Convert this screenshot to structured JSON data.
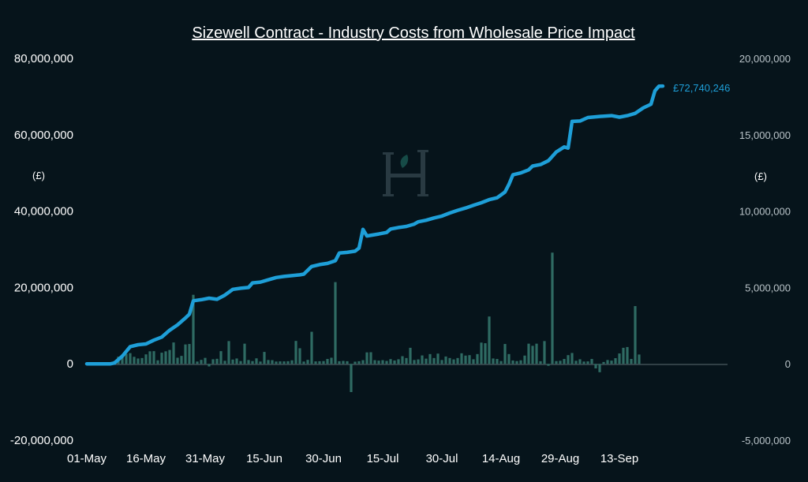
{
  "chart_data": {
    "type": "line",
    "title": "Sizewell Contract - Industry Costs from Wholesale Price Impact",
    "left_axis": {
      "unit_label": "(£)",
      "ylim": [
        -20000000,
        80000000
      ],
      "ticks": [
        80000000,
        60000000,
        40000000,
        20000000,
        0,
        -20000000
      ],
      "tick_labels": [
        "80,000,000",
        "60,000,000",
        "40,000,000",
        "20,000,000",
        "0",
        "-20,000,000"
      ]
    },
    "right_axis": {
      "unit_label": "(£)",
      "ylim": [
        -5000000,
        20000000
      ],
      "ticks": [
        20000000,
        15000000,
        10000000,
        5000000,
        0,
        -5000000
      ],
      "tick_labels": [
        "20,000,000",
        "15,000,000",
        "10,000,000",
        "5,000,000",
        "0",
        "-5,000,000"
      ]
    },
    "x_axis": {
      "start": "2023-05-01",
      "tick_dates": [
        "2023-05-01",
        "2023-05-16",
        "2023-05-31",
        "2023-06-15",
        "2023-06-30",
        "2023-07-15",
        "2023-07-30",
        "2023-08-14",
        "2023-08-29",
        "2023-09-13"
      ],
      "tick_labels": [
        "01-May",
        "16-May",
        "31-May",
        "15-Jun",
        "30-Jun",
        "15-Jul",
        "30-Jul",
        "14-Aug",
        "29-Aug",
        "13-Sep"
      ]
    },
    "series": [
      {
        "kind": "line",
        "axis": "left",
        "color": "#1e9fd8",
        "points": [
          [
            "2023-05-01",
            0
          ],
          [
            "2023-05-07",
            0
          ],
          [
            "2023-05-08",
            200000
          ],
          [
            "2023-05-10",
            2000000
          ],
          [
            "2023-05-12",
            4500000
          ],
          [
            "2023-05-14",
            5000000
          ],
          [
            "2023-05-16",
            5200000
          ],
          [
            "2023-05-18",
            6200000
          ],
          [
            "2023-05-20",
            7000000
          ],
          [
            "2023-05-22",
            8800000
          ],
          [
            "2023-05-24",
            10200000
          ],
          [
            "2023-05-26",
            12000000
          ],
          [
            "2023-05-27",
            13000000
          ],
          [
            "2023-05-28",
            16500000
          ],
          [
            "2023-05-30",
            16800000
          ],
          [
            "2023-06-01",
            17200000
          ],
          [
            "2023-06-03",
            16900000
          ],
          [
            "2023-06-05",
            18000000
          ],
          [
            "2023-06-07",
            19500000
          ],
          [
            "2023-06-09",
            19800000
          ],
          [
            "2023-06-11",
            20000000
          ],
          [
            "2023-06-12",
            21200000
          ],
          [
            "2023-06-14",
            21400000
          ],
          [
            "2023-06-16",
            22000000
          ],
          [
            "2023-06-18",
            22600000
          ],
          [
            "2023-06-20",
            22900000
          ],
          [
            "2023-06-22",
            23100000
          ],
          [
            "2023-06-24",
            23300000
          ],
          [
            "2023-06-25",
            23500000
          ],
          [
            "2023-06-27",
            25500000
          ],
          [
            "2023-06-29",
            26000000
          ],
          [
            "2023-07-01",
            26300000
          ],
          [
            "2023-07-03",
            27000000
          ],
          [
            "2023-07-04",
            29000000
          ],
          [
            "2023-07-06",
            29200000
          ],
          [
            "2023-07-08",
            29500000
          ],
          [
            "2023-07-09",
            30300000
          ],
          [
            "2023-07-10",
            35200000
          ],
          [
            "2023-07-11",
            33500000
          ],
          [
            "2023-07-14",
            34000000
          ],
          [
            "2023-07-16",
            34400000
          ],
          [
            "2023-07-17",
            35300000
          ],
          [
            "2023-07-19",
            35700000
          ],
          [
            "2023-07-21",
            36000000
          ],
          [
            "2023-07-23",
            36600000
          ],
          [
            "2023-07-24",
            37200000
          ],
          [
            "2023-07-26",
            37600000
          ],
          [
            "2023-07-28",
            38200000
          ],
          [
            "2023-07-30",
            38700000
          ],
          [
            "2023-08-01",
            39500000
          ],
          [
            "2023-08-03",
            40200000
          ],
          [
            "2023-08-05",
            40800000
          ],
          [
            "2023-08-07",
            41500000
          ],
          [
            "2023-08-09",
            42200000
          ],
          [
            "2023-08-11",
            43000000
          ],
          [
            "2023-08-13",
            43500000
          ],
          [
            "2023-08-15",
            45000000
          ],
          [
            "2023-08-16",
            47000000
          ],
          [
            "2023-08-17",
            49500000
          ],
          [
            "2023-08-19",
            50000000
          ],
          [
            "2023-08-21",
            50800000
          ],
          [
            "2023-08-22",
            51800000
          ],
          [
            "2023-08-24",
            52200000
          ],
          [
            "2023-08-26",
            53200000
          ],
          [
            "2023-08-28",
            55500000
          ],
          [
            "2023-08-30",
            56800000
          ],
          [
            "2023-08-31",
            56500000
          ],
          [
            "2023-09-01",
            63500000
          ],
          [
            "2023-09-03",
            63600000
          ],
          [
            "2023-09-05",
            64500000
          ],
          [
            "2023-09-08",
            64800000
          ],
          [
            "2023-09-11",
            65000000
          ],
          [
            "2023-09-13",
            64600000
          ],
          [
            "2023-09-15",
            65000000
          ],
          [
            "2023-09-17",
            65600000
          ],
          [
            "2023-09-19",
            67000000
          ],
          [
            "2023-09-21",
            68000000
          ],
          [
            "2023-09-22",
            71500000
          ],
          [
            "2023-09-23",
            72700000
          ],
          [
            "2023-09-24",
            72740246
          ]
        ],
        "end_label": "£72,740,246"
      },
      {
        "kind": "bar",
        "axis": "right",
        "color": "#2f6b63",
        "values": [
          0,
          0,
          0,
          0,
          0,
          0,
          0,
          180000,
          470000,
          600000,
          650000,
          700000,
          460000,
          350000,
          380000,
          620000,
          820000,
          830000,
          230000,
          730000,
          820000,
          910000,
          1400000,
          400000,
          520000,
          1270000,
          1300000,
          4520000,
          150000,
          260000,
          390000,
          -170000,
          300000,
          330000,
          830000,
          200000,
          1490000,
          280000,
          350000,
          180000,
          1320000,
          250000,
          180000,
          360000,
          150000,
          780000,
          250000,
          240000,
          150000,
          160000,
          160000,
          170000,
          230000,
          1500000,
          1020000,
          150000,
          260000,
          2100000,
          160000,
          170000,
          180000,
          320000,
          400000,
          5350000,
          170000,
          190000,
          170000,
          -1850000,
          140000,
          170000,
          240000,
          750000,
          760000,
          240000,
          210000,
          240000,
          190000,
          310000,
          220000,
          300000,
          500000,
          380000,
          1050000,
          250000,
          290000,
          550000,
          340000,
          640000,
          380000,
          670000,
          250000,
          480000,
          380000,
          290000,
          380000,
          690000,
          540000,
          570000,
          300000,
          640000,
          1390000,
          1350000,
          3100000,
          350000,
          320000,
          180000,
          1300000,
          640000,
          220000,
          180000,
          230000,
          540000,
          1320000,
          1180000,
          1320000,
          170000,
          1490000,
          -130000,
          7280000,
          180000,
          200000,
          320000,
          570000,
          710000,
          200000,
          300000,
          150000,
          160000,
          320000,
          -300000,
          -550000,
          120000,
          250000,
          210000,
          370000,
          680000,
          1050000,
          1100000,
          320000,
          3780000,
          610000
        ]
      }
    ]
  }
}
